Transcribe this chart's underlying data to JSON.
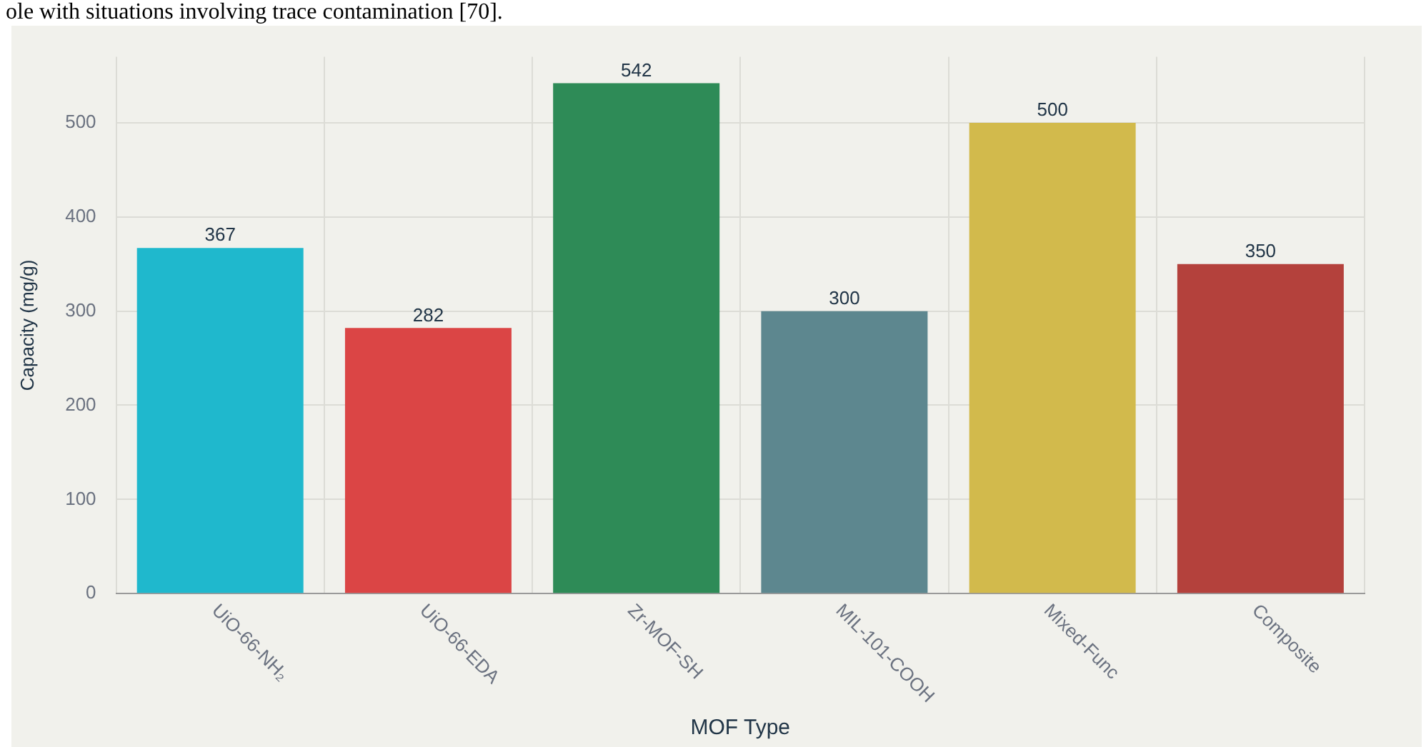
{
  "chart_data": {
    "type": "bar",
    "xlabel": "MOF Type",
    "ylabel": "Capacity (mg/g)",
    "annotations": [
      "ole with situations involving trace contamination [70]."
    ],
    "categories": [
      "UiO-66-NH₂",
      "UiO-66-EDA",
      "Zr-MOF-SH",
      "MIL-101-COOH",
      "Mixed-Func",
      "Composite"
    ],
    "values": [
      367,
      282,
      542,
      300,
      500,
      350
    ],
    "colors": [
      "#1fb8cd",
      "#db4545",
      "#2e8b57",
      "#5d878f",
      "#d2ba4c",
      "#b4413c"
    ],
    "ylim": [
      0,
      570
    ],
    "yticks": [
      0,
      100,
      200,
      300,
      400,
      500
    ],
    "grid": true,
    "data_labels": true,
    "legend": false
  }
}
